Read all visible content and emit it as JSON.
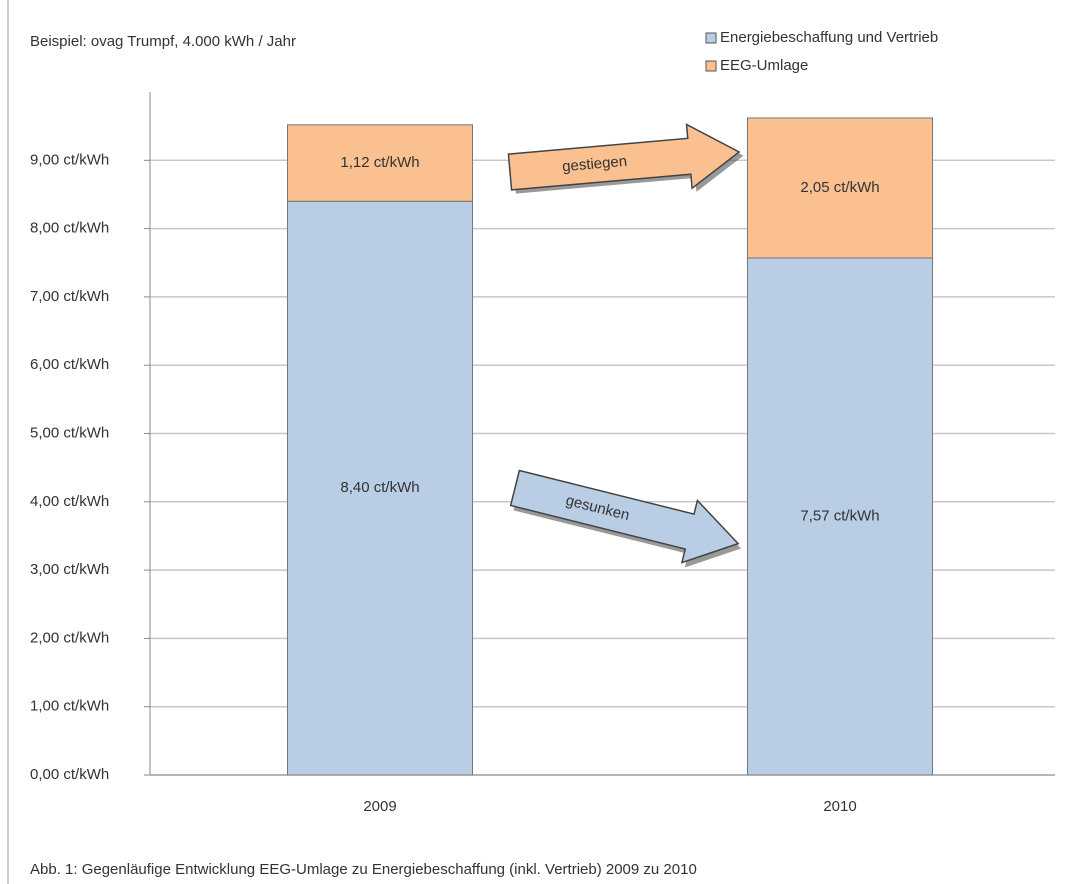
{
  "chart_data": {
    "type": "stacked_bar",
    "title": "Beispiel: ovag Trumpf, 4.000 kWh / Jahr",
    "caption": "Abb. 1: Gegenläufige Entwicklung EEG-Umlage zu Energiebeschaffung (inkl. Vertrieb) 2009 zu 2010",
    "categories": [
      "2009",
      "2010"
    ],
    "series": [
      {
        "name": "Energiebeschaffung und Vertrieb",
        "color": "#b9cde5",
        "values": [
          8.4,
          7.57
        ],
        "value_labels": [
          "8,40 ct/kWh",
          "7,57 ct/kWh"
        ]
      },
      {
        "name": "EEG-Umlage",
        "color": "#fac090",
        "values": [
          1.12,
          2.05
        ],
        "value_labels": [
          "1,12 ct/kWh",
          "2,05 ct/kWh"
        ]
      }
    ],
    "annotations": [
      "gestiegen",
      "gesunken"
    ],
    "ylim": [
      0,
      10
    ],
    "yticks": [
      {
        "value": 0,
        "label": "0,00 ct/kWh"
      },
      {
        "value": 1,
        "label": "1,00 ct/kWh"
      },
      {
        "value": 2,
        "label": "2,00 ct/kWh"
      },
      {
        "value": 3,
        "label": "3,00 ct/kWh"
      },
      {
        "value": 4,
        "label": "4,00 ct/kWh"
      },
      {
        "value": 5,
        "label": "5,00 ct/kWh"
      },
      {
        "value": 6,
        "label": "6,00 ct/kWh"
      },
      {
        "value": 7,
        "label": "7,00 ct/kWh"
      },
      {
        "value": 8,
        "label": "8,00 ct/kWh"
      },
      {
        "value": 9,
        "label": "9,00 ct/kWh"
      }
    ],
    "grid": true
  }
}
